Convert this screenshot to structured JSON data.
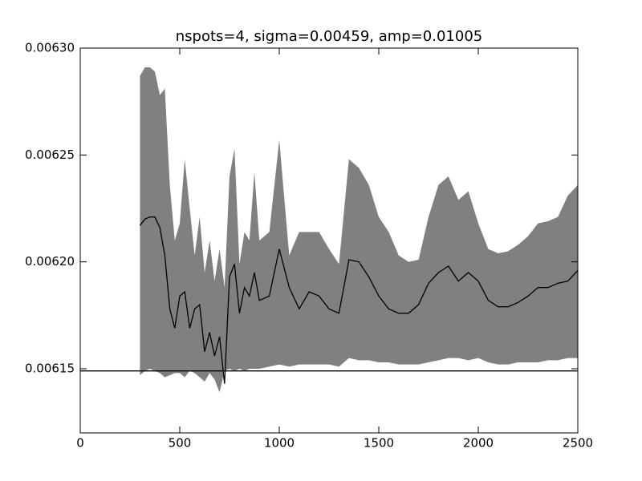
{
  "chart_data": {
    "type": "band-line",
    "title": "nspots=4, sigma=0.00459, amp=0.01005",
    "x": [
      300,
      325,
      350,
      375,
      400,
      425,
      450,
      475,
      500,
      525,
      550,
      575,
      600,
      625,
      650,
      675,
      700,
      725,
      750,
      775,
      800,
      825,
      850,
      875,
      900,
      950,
      1000,
      1050,
      1100,
      1150,
      1200,
      1250,
      1300,
      1350,
      1400,
      1450,
      1500,
      1550,
      1600,
      1650,
      1700,
      1750,
      1800,
      1850,
      1900,
      1950,
      2000,
      2050,
      2100,
      2150,
      2200,
      2250,
      2300,
      2350,
      2400,
      2450,
      2500
    ],
    "series": [
      {
        "color": "#000000",
        "values": [
          0.006217,
          0.00622,
          0.006221,
          0.006221,
          0.006216,
          0.006203,
          0.006178,
          0.006169,
          0.006184,
          0.006186,
          0.006169,
          0.006178,
          0.00618,
          0.006158,
          0.006167,
          0.006156,
          0.006165,
          0.006143,
          0.006193,
          0.006199,
          0.006176,
          0.006188,
          0.006184,
          0.006195,
          0.006182,
          0.006184,
          0.006206,
          0.006188,
          0.006178,
          0.006186,
          0.006184,
          0.006178,
          0.006176,
          0.006201,
          0.0062,
          0.006193,
          0.006184,
          0.006178,
          0.006176,
          0.006176,
          0.00618,
          0.00619,
          0.006195,
          0.006198,
          0.006191,
          0.006195,
          0.006191,
          0.006182,
          0.006179,
          0.006179,
          0.006181,
          0.006184,
          0.006188,
          0.006188,
          0.00619,
          0.006191,
          0.006196
        ]
      }
    ],
    "band": {
      "color": "#808080",
      "upper": [
        0.006287,
        0.006291,
        0.006291,
        0.006289,
        0.006278,
        0.006281,
        0.006236,
        0.00621,
        0.006218,
        0.006248,
        0.006225,
        0.006203,
        0.006221,
        0.006195,
        0.00621,
        0.006191,
        0.006206,
        0.006188,
        0.00624,
        0.006253,
        0.006199,
        0.006214,
        0.00621,
        0.006242,
        0.00621,
        0.006214,
        0.006257,
        0.006203,
        0.006214,
        0.006214,
        0.006214,
        0.006206,
        0.006199,
        0.006248,
        0.006244,
        0.006236,
        0.006221,
        0.006214,
        0.006203,
        0.0062,
        0.006201,
        0.006221,
        0.006236,
        0.00624,
        0.006229,
        0.006233,
        0.006218,
        0.006206,
        0.006204,
        0.006205,
        0.006208,
        0.006212,
        0.006218,
        0.006219,
        0.006221,
        0.006231,
        0.006236
      ],
      "lower": [
        0.006147,
        0.006149,
        0.00615,
        0.006149,
        0.006148,
        0.006146,
        0.006147,
        0.006148,
        0.006148,
        0.006146,
        0.006149,
        0.006148,
        0.006146,
        0.006144,
        0.006148,
        0.006145,
        0.006139,
        0.006149,
        0.00615,
        0.006149,
        0.00615,
        0.006149,
        0.00615,
        0.00615,
        0.00615,
        0.006151,
        0.006152,
        0.006151,
        0.006152,
        0.006152,
        0.006152,
        0.006152,
        0.006151,
        0.006155,
        0.006154,
        0.006154,
        0.006153,
        0.006153,
        0.006152,
        0.006152,
        0.006152,
        0.006153,
        0.006154,
        0.006155,
        0.006155,
        0.006154,
        0.006155,
        0.006153,
        0.006152,
        0.006152,
        0.006153,
        0.006153,
        0.006153,
        0.006154,
        0.006154,
        0.006155,
        0.006155
      ]
    },
    "hline": 0.006149,
    "xlim": [
      0,
      2500
    ],
    "xticks": [
      0,
      500,
      1000,
      1500,
      2000,
      2500
    ],
    "ylim": [
      0.00612,
      0.0063
    ],
    "yticks": [
      {
        "value": 0.00615,
        "label": "0.00615"
      },
      {
        "value": 0.0062,
        "label": "0.00620"
      },
      {
        "value": 0.00625,
        "label": "0.00625"
      },
      {
        "value": 0.0063,
        "label": "0.00630"
      }
    ]
  }
}
